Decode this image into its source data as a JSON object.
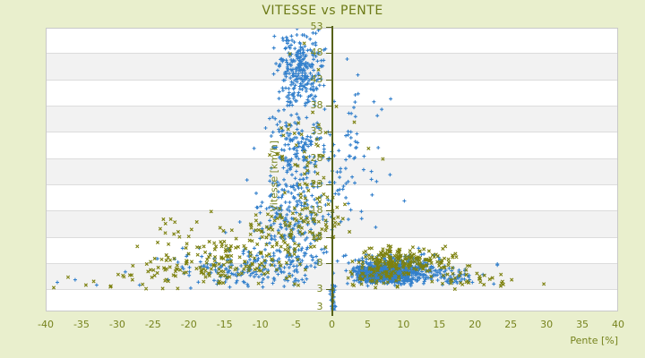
{
  "title": "VITESSE vs PENTE",
  "colors": {
    "background": "#e9efcd",
    "plot_background": "#ffffff",
    "band_gray": "#f2f2f2",
    "gridline": "#dcdcdc",
    "plot_border": "#c9c9c9",
    "axis_line": "#57621a",
    "text_olive": "#76831d",
    "title_olive": "#6c7a16",
    "series_blue": "#3380cc",
    "series_olive": "#7d810f"
  },
  "chart_data": {
    "type": "scatter",
    "title": "VITESSE vs PENTE",
    "xlabel": "Pente [%]",
    "ylabel": "Vitesse [km/h]",
    "xlim": [
      -40,
      40
    ],
    "ylim": [
      -1.2,
      52.8
    ],
    "xticks": [
      "-40",
      "-35",
      "-30",
      "-25",
      "-20",
      "-15",
      "-10",
      "-5",
      "0",
      "5",
      "10",
      "15",
      "20",
      "25",
      "30",
      "35",
      "40"
    ],
    "yticks": [
      "3",
      "8",
      "13",
      "18",
      "23",
      "28",
      "33",
      "38",
      "43",
      "48",
      "53"
    ],
    "ytick_values": [
      3,
      8,
      13,
      18,
      23,
      28,
      33,
      38,
      43,
      48,
      53
    ],
    "xtick_values": [
      -40,
      -35,
      -30,
      -25,
      -20,
      -15,
      -10,
      -5,
      0,
      5,
      10,
      15,
      20,
      25,
      30,
      35,
      40
    ],
    "axis_min_label": "3",
    "grid": "horizontal-bands-alternating",
    "gray_bands": [
      [
        3,
        8
      ],
      [
        13,
        18
      ],
      [
        23,
        28
      ],
      [
        33,
        38
      ],
      [
        43,
        48
      ]
    ],
    "zero_axis_x": 0,
    "legend": "none",
    "series": [
      {
        "name": "series-blue-plus",
        "marker": "plus",
        "color": "#3380cc",
        "clusters": [
          [
            260,
            -4.5,
            45,
            2.6,
            5.5
          ],
          [
            150,
            -5,
            30,
            3,
            6
          ],
          [
            130,
            -5.5,
            17,
            4,
            5
          ],
          [
            60,
            -3,
            24,
            6,
            10
          ],
          [
            50,
            2.5,
            30,
            4,
            9
          ],
          [
            550,
            7,
            6,
            2.8,
            1.3
          ],
          [
            260,
            8,
            7,
            4.5,
            2.2
          ],
          [
            90,
            12.5,
            6.5,
            3.5,
            2
          ],
          [
            160,
            -12,
            7.5,
            7.5,
            3
          ],
          [
            70,
            -6,
            9,
            5,
            4
          ],
          [
            40,
            0,
            1.5,
            0.3,
            2
          ],
          [
            35,
            16.5,
            5.5,
            2.5,
            1.2
          ]
        ],
        "points": [
          [
            -38.5,
            4.5
          ],
          [
            -36,
            5
          ],
          [
            -33,
            4
          ],
          [
            -29,
            6.5
          ],
          [
            -27,
            4
          ],
          [
            -24.5,
            9
          ],
          [
            -23,
            5
          ],
          [
            -21,
            11
          ],
          [
            18.5,
            7
          ],
          [
            19.5,
            4.5
          ],
          [
            21,
            6
          ],
          [
            23,
            8
          ],
          [
            22.5,
            4.2
          ],
          [
            -15,
            14
          ],
          [
            -13,
            16
          ],
          [
            2,
            47
          ],
          [
            3.5,
            44
          ],
          [
            -11,
            30
          ],
          [
            -12,
            24
          ],
          [
            4,
            18
          ],
          [
            6,
            15
          ],
          [
            8,
            25
          ],
          [
            10,
            20
          ],
          [
            12,
            11
          ],
          [
            -2,
            52.5
          ],
          [
            -5,
            52.8
          ],
          [
            -7,
            51
          ],
          [
            1.5,
            9.5
          ],
          [
            23,
            7.8
          ]
        ]
      },
      {
        "name": "series-olive-x",
        "marker": "x",
        "color": "#7d810f",
        "clusters": [
          [
            150,
            -14,
            8,
            8.5,
            3.2
          ],
          [
            70,
            -7,
            14,
            5,
            4
          ],
          [
            45,
            -4.5,
            26,
            3.5,
            9
          ],
          [
            40,
            -1.5,
            17,
            3,
            5
          ],
          [
            130,
            8.5,
            9,
            3.5,
            1.8
          ],
          [
            80,
            7,
            6,
            3.5,
            2
          ],
          [
            55,
            14,
            8,
            4,
            2.5
          ],
          [
            30,
            19,
            5,
            4,
            1.5
          ],
          [
            25,
            -20,
            13,
            6,
            3
          ],
          [
            20,
            -26,
            6,
            6,
            2
          ]
        ],
        "points": [
          [
            -39,
            3.5
          ],
          [
            -37,
            5.5
          ],
          [
            -34.5,
            4
          ],
          [
            -31,
            3.8
          ],
          [
            -30,
            6
          ],
          [
            -28,
            5
          ],
          [
            -26,
            8
          ],
          [
            29.5,
            4.2
          ],
          [
            25,
            5
          ],
          [
            23.5,
            6
          ],
          [
            -6,
            48
          ],
          [
            -4,
            50
          ],
          [
            -2,
            45
          ],
          [
            0.5,
            38
          ],
          [
            -1,
            33
          ],
          [
            3,
            35
          ],
          [
            -17,
            18
          ],
          [
            -19,
            16
          ],
          [
            5,
            30
          ],
          [
            7,
            28
          ],
          [
            0,
            2
          ],
          [
            0,
            3.2
          ],
          [
            0,
            1
          ]
        ]
      }
    ]
  }
}
